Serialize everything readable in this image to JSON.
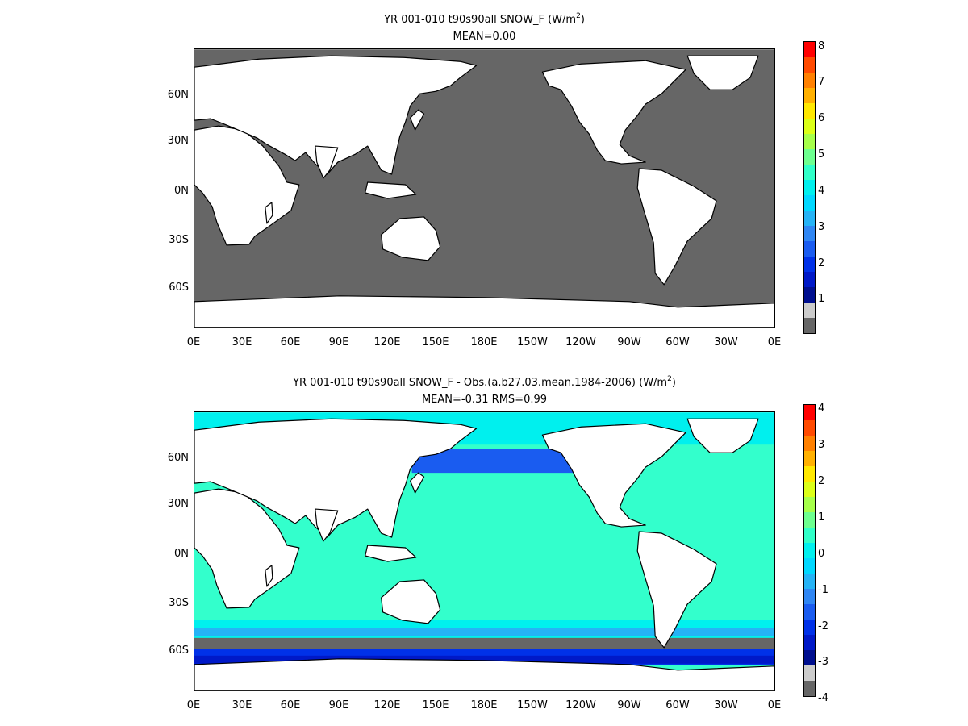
{
  "colorbar_colors": [
    "#666666",
    "#cccccc",
    "#000f8f",
    "#0019c8",
    "#0031e8",
    "#1a5cf0",
    "#2f86f3",
    "#25b3f6",
    "#00d8ff",
    "#00f0ee",
    "#30ffc8",
    "#6dff8f",
    "#a6ff4a",
    "#dcff18",
    "#ffe800",
    "#ffb000",
    "#ff8000",
    "#ff4a00",
    "#ff0000"
  ],
  "panels": [
    {
      "title_line1": "YR 001-010 t90s90all  SNOW_F (W/m",
      "title_sup": "2",
      "title_close": ")",
      "title_line2": "MEAN=0.00",
      "ocean_color": "#666666",
      "cbar_labels": [
        "8",
        "7",
        "6",
        "5",
        "4",
        "3",
        "2",
        "1"
      ],
      "y_labels": [
        "60N",
        "30N",
        "0N",
        "30S",
        "60S"
      ],
      "x_labels": [
        "0E",
        "30E",
        "60E",
        "90E",
        "120E",
        "150E",
        "180E",
        "150W",
        "120W",
        "90W",
        "60W",
        "30W",
        "0E"
      ]
    },
    {
      "title_line1": "YR 001-010 t90s90all SNOW_F - Obs.(a.b27.03.mean.1984-2006) (W/m",
      "title_sup": "2",
      "title_close": ")",
      "title_line2": "MEAN=-0.31 RMS=0.99",
      "ocean_color": "#33ffcc",
      "cbar_labels": [
        "4",
        "3",
        "2",
        "1",
        "0",
        "-1",
        "-2",
        "-3",
        "-4"
      ],
      "y_labels": [
        "60N",
        "30N",
        "0N",
        "30S",
        "60S"
      ],
      "x_labels": [
        "0E",
        "30E",
        "60E",
        "90E",
        "120E",
        "150E",
        "180E",
        "150W",
        "120W",
        "90W",
        "60W",
        "30W",
        "0E"
      ]
    }
  ]
}
